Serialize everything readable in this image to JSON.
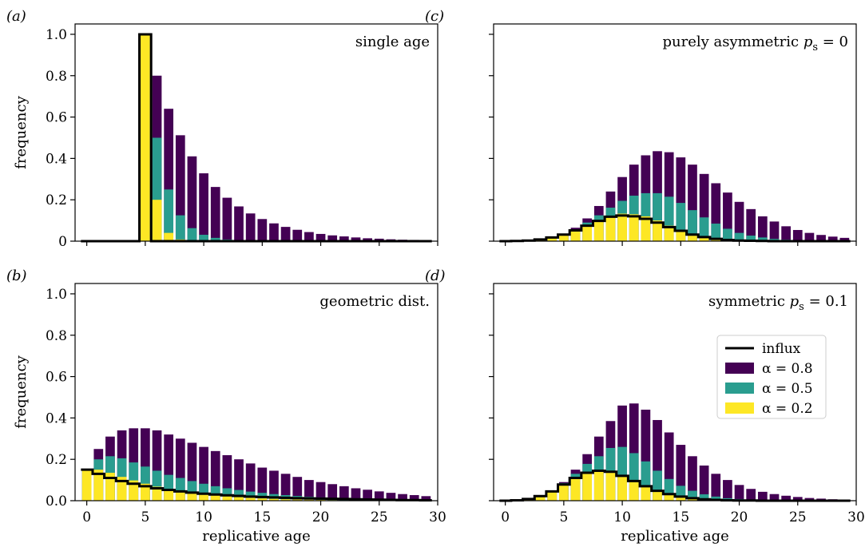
{
  "figure": {
    "colors": {
      "alpha_0_8": "#440154",
      "alpha_0_5": "#2a9d8f",
      "alpha_0_2": "#fde725",
      "influx": "#000000"
    }
  },
  "chart_data": [
    {
      "id": "a",
      "type": "bar",
      "panel_label": "(a)",
      "annotation": "single age",
      "xlabel": "",
      "ylabel": "frequency",
      "xlim": [
        -1,
        30
      ],
      "ylim": [
        0,
        1.05
      ],
      "x_ticks": [
        0,
        5,
        10,
        15,
        20,
        25,
        30
      ],
      "x_tick_labels": [],
      "y_ticks": [
        0,
        0.2,
        0.4,
        0.6,
        0.8,
        1.0
      ],
      "y_tick_labels": [
        "0",
        "0.2",
        "0.4",
        "0.6",
        "0.8",
        "1.0"
      ],
      "x": [
        0,
        1,
        2,
        3,
        4,
        5,
        6,
        7,
        8,
        9,
        10,
        11,
        12,
        13,
        14,
        15,
        16,
        17,
        18,
        19,
        20,
        21,
        22,
        23,
        24,
        25,
        26,
        27,
        28,
        29
      ],
      "series": [
        {
          "name": "α = 0.8",
          "color_key": "alpha_0_8",
          "values": [
            0,
            0,
            0,
            0,
            0,
            1.0,
            0.8,
            0.64,
            0.512,
            0.41,
            0.328,
            0.262,
            0.21,
            0.168,
            0.134,
            0.107,
            0.086,
            0.069,
            0.055,
            0.044,
            0.035,
            0.028,
            0.023,
            0.018,
            0.014,
            0.012,
            0.009,
            0.007,
            0.006,
            0.005
          ]
        },
        {
          "name": "α = 0.5",
          "color_key": "alpha_0_5",
          "values": [
            0,
            0,
            0,
            0,
            0,
            1.0,
            0.5,
            0.25,
            0.125,
            0.063,
            0.031,
            0.016,
            0.008,
            0.004,
            0.002,
            0.001,
            0,
            0,
            0,
            0,
            0,
            0,
            0,
            0,
            0,
            0,
            0,
            0,
            0,
            0
          ]
        },
        {
          "name": "α = 0.2",
          "color_key": "alpha_0_2",
          "values": [
            0,
            0,
            0,
            0,
            0,
            1.0,
            0.2,
            0.04,
            0.008,
            0.002,
            0,
            0,
            0,
            0,
            0,
            0,
            0,
            0,
            0,
            0,
            0,
            0,
            0,
            0,
            0,
            0,
            0,
            0,
            0,
            0
          ]
        },
        {
          "name": "influx",
          "color_key": "influx",
          "kind": "step",
          "values": [
            0,
            0,
            0,
            0,
            0,
            1.0,
            0,
            0,
            0,
            0,
            0,
            0,
            0,
            0,
            0,
            0,
            0,
            0,
            0,
            0,
            0,
            0,
            0,
            0,
            0,
            0,
            0,
            0,
            0,
            0
          ]
        }
      ]
    },
    {
      "id": "c",
      "type": "bar",
      "panel_label": "(c)",
      "annotation_prefix": "purely asymmetric ",
      "annotation_var": "p",
      "annotation_sub": "s",
      "annotation_suffix": " = 0",
      "xlabel": "",
      "ylabel": "",
      "xlim": [
        -1,
        30
      ],
      "ylim": [
        0,
        1.05
      ],
      "x_ticks": [
        0,
        5,
        10,
        15,
        20,
        25,
        30
      ],
      "x_tick_labels": [],
      "y_ticks": [
        0,
        0.2,
        0.4,
        0.6,
        0.8,
        1.0
      ],
      "y_tick_labels": [],
      "x": [
        0,
        1,
        2,
        3,
        4,
        5,
        6,
        7,
        8,
        9,
        10,
        11,
        12,
        13,
        14,
        15,
        16,
        17,
        18,
        19,
        20,
        21,
        22,
        23,
        24,
        25,
        26,
        27,
        28,
        29
      ],
      "series": [
        {
          "name": "α = 0.8",
          "color_key": "alpha_0_8",
          "values": [
            0,
            0.001,
            0.003,
            0.008,
            0.018,
            0.035,
            0.065,
            0.11,
            0.17,
            0.24,
            0.31,
            0.37,
            0.415,
            0.435,
            0.43,
            0.405,
            0.37,
            0.325,
            0.28,
            0.235,
            0.19,
            0.155,
            0.12,
            0.095,
            0.072,
            0.054,
            0.04,
            0.03,
            0.022,
            0.016
          ]
        },
        {
          "name": "α = 0.5",
          "color_key": "alpha_0_5",
          "values": [
            0,
            0.001,
            0.003,
            0.008,
            0.018,
            0.034,
            0.058,
            0.09,
            0.125,
            0.162,
            0.195,
            0.22,
            0.232,
            0.232,
            0.215,
            0.185,
            0.15,
            0.115,
            0.085,
            0.06,
            0.04,
            0.027,
            0.018,
            0.011,
            0.007,
            0.004,
            0.003,
            0.002,
            0.001,
            0.001
          ]
        },
        {
          "name": "α = 0.2",
          "color_key": "alpha_0_2",
          "values": [
            0,
            0.001,
            0.003,
            0.008,
            0.018,
            0.032,
            0.052,
            0.075,
            0.1,
            0.122,
            0.133,
            0.13,
            0.12,
            0.1,
            0.075,
            0.055,
            0.035,
            0.022,
            0.012,
            0.007,
            0.004,
            0.002,
            0.001,
            0.001,
            0,
            0,
            0,
            0,
            0,
            0
          ]
        },
        {
          "name": "influx",
          "color_key": "influx",
          "kind": "step",
          "values": [
            0,
            0.001,
            0.003,
            0.008,
            0.018,
            0.032,
            0.052,
            0.075,
            0.098,
            0.118,
            0.124,
            0.12,
            0.108,
            0.09,
            0.068,
            0.05,
            0.032,
            0.02,
            0.011,
            0.006,
            0.003,
            0.002,
            0.001,
            0,
            0,
            0,
            0,
            0,
            0,
            0
          ]
        }
      ]
    },
    {
      "id": "b",
      "type": "bar",
      "panel_label": "(b)",
      "annotation": "geometric dist.",
      "xlabel": "replicative age",
      "ylabel": "frequency",
      "xlim": [
        -1,
        30
      ],
      "ylim": [
        0,
        1.05
      ],
      "x_ticks": [
        0,
        5,
        10,
        15,
        20,
        25,
        30
      ],
      "x_tick_labels": [
        "0",
        "5",
        "10",
        "15",
        "20",
        "25",
        "30"
      ],
      "y_ticks": [
        0,
        0.2,
        0.4,
        0.6,
        0.8,
        1.0
      ],
      "y_tick_labels": [
        "0.0",
        "0.2",
        "0.4",
        "0.6",
        "0.8",
        "1.0"
      ],
      "x": [
        0,
        1,
        2,
        3,
        4,
        5,
        6,
        7,
        8,
        9,
        10,
        11,
        12,
        13,
        14,
        15,
        16,
        17,
        18,
        19,
        20,
        21,
        22,
        23,
        24,
        25,
        26,
        27,
        28,
        29
      ],
      "series": [
        {
          "name": "α = 0.8",
          "color_key": "alpha_0_8",
          "values": [
            0.15,
            0.25,
            0.31,
            0.34,
            0.35,
            0.35,
            0.34,
            0.32,
            0.3,
            0.28,
            0.26,
            0.24,
            0.22,
            0.2,
            0.18,
            0.16,
            0.145,
            0.13,
            0.115,
            0.1,
            0.09,
            0.08,
            0.07,
            0.06,
            0.053,
            0.045,
            0.038,
            0.032,
            0.027,
            0.022
          ]
        },
        {
          "name": "α = 0.5",
          "color_key": "alpha_0_5",
          "values": [
            0.15,
            0.2,
            0.215,
            0.205,
            0.185,
            0.165,
            0.145,
            0.125,
            0.11,
            0.095,
            0.082,
            0.07,
            0.06,
            0.052,
            0.044,
            0.038,
            0.032,
            0.027,
            0.023,
            0.019,
            0.016,
            0.013,
            0.011,
            0.009,
            0.008,
            0.006,
            0.005,
            0.004,
            0.003,
            0.003
          ]
        },
        {
          "name": "α = 0.2",
          "color_key": "alpha_0_2",
          "values": [
            0.15,
            0.15,
            0.135,
            0.115,
            0.098,
            0.082,
            0.068,
            0.056,
            0.046,
            0.038,
            0.031,
            0.025,
            0.021,
            0.017,
            0.014,
            0.011,
            0.009,
            0.007,
            0.006,
            0.005,
            0.004,
            0.003,
            0.002,
            0.002,
            0.001,
            0.001,
            0.001,
            0.001,
            0,
            0
          ]
        },
        {
          "name": "influx",
          "color_key": "influx",
          "kind": "step",
          "values": [
            0.15,
            0.13,
            0.11,
            0.095,
            0.082,
            0.07,
            0.06,
            0.052,
            0.045,
            0.039,
            0.034,
            0.03,
            0.026,
            0.023,
            0.02,
            0.018,
            0.016,
            0.014,
            0.012,
            0.011,
            0.01,
            0.009,
            0.008,
            0.007,
            0.006,
            0.005,
            0.004,
            0.003,
            0.003,
            0.002
          ]
        }
      ]
    },
    {
      "id": "d",
      "type": "bar",
      "panel_label": "(d)",
      "annotation_prefix": "symmetric ",
      "annotation_var": "p",
      "annotation_sub": "s",
      "annotation_suffix": " = 0.1",
      "xlabel": "replicative age",
      "ylabel": "",
      "xlim": [
        -1,
        30
      ],
      "ylim": [
        0,
        1.05
      ],
      "x_ticks": [
        0,
        5,
        10,
        15,
        20,
        25,
        30
      ],
      "x_tick_labels": [
        "0",
        "5",
        "10",
        "15",
        "20",
        "25",
        "30"
      ],
      "y_ticks": [
        0,
        0.2,
        0.4,
        0.6,
        0.8,
        1.0
      ],
      "y_tick_labels": [],
      "x": [
        0,
        1,
        2,
        3,
        4,
        5,
        6,
        7,
        8,
        9,
        10,
        11,
        12,
        13,
        14,
        15,
        16,
        17,
        18,
        19,
        20,
        21,
        22,
        23,
        24,
        25,
        26,
        27,
        28,
        29
      ],
      "series": [
        {
          "name": "α = 0.8",
          "color_key": "alpha_0_8",
          "values": [
            0,
            0.002,
            0.008,
            0.022,
            0.048,
            0.09,
            0.15,
            0.225,
            0.31,
            0.385,
            0.46,
            0.47,
            0.44,
            0.39,
            0.33,
            0.27,
            0.215,
            0.17,
            0.13,
            0.1,
            0.076,
            0.057,
            0.043,
            0.032,
            0.024,
            0.018,
            0.013,
            0.01,
            0.007,
            0.005
          ]
        },
        {
          "name": "α = 0.5",
          "color_key": "alpha_0_5",
          "values": [
            0,
            0.002,
            0.008,
            0.022,
            0.047,
            0.085,
            0.13,
            0.178,
            0.215,
            0.255,
            0.26,
            0.23,
            0.19,
            0.145,
            0.105,
            0.072,
            0.048,
            0.031,
            0.02,
            0.012,
            0.008,
            0.005,
            0.003,
            0.002,
            0.001,
            0.001,
            0,
            0,
            0,
            0
          ]
        },
        {
          "name": "α = 0.2",
          "color_key": "alpha_0_2",
          "values": [
            0,
            0.002,
            0.008,
            0.022,
            0.046,
            0.08,
            0.113,
            0.14,
            0.15,
            0.145,
            0.123,
            0.097,
            0.072,
            0.05,
            0.033,
            0.021,
            0.013,
            0.008,
            0.005,
            0.003,
            0.002,
            0.001,
            0.001,
            0,
            0,
            0,
            0,
            0,
            0,
            0
          ]
        },
        {
          "name": "influx",
          "color_key": "influx",
          "kind": "step",
          "values": [
            0,
            0.002,
            0.008,
            0.022,
            0.045,
            0.078,
            0.11,
            0.135,
            0.145,
            0.14,
            0.12,
            0.095,
            0.07,
            0.048,
            0.032,
            0.02,
            0.012,
            0.007,
            0.004,
            0.002,
            0.001,
            0.001,
            0,
            0,
            0,
            0,
            0,
            0,
            0,
            0
          ]
        }
      ]
    }
  ],
  "legend": {
    "placement": "panel d, center-right",
    "items": [
      {
        "label": "influx",
        "color_key": "influx",
        "kind": "line"
      },
      {
        "label": "α = 0.8",
        "color_key": "alpha_0_8",
        "kind": "patch"
      },
      {
        "label": "α = 0.5",
        "color_key": "alpha_0_5",
        "kind": "patch"
      },
      {
        "label": "α = 0.2",
        "color_key": "alpha_0_2",
        "kind": "patch"
      }
    ]
  }
}
